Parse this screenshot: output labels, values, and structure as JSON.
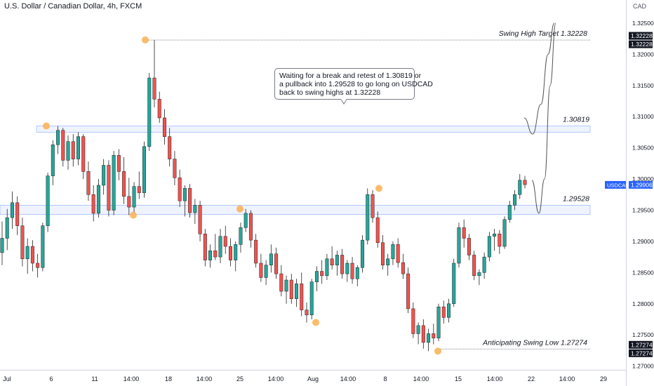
{
  "header": {
    "title": "U.S. Dollar / Canadian Dollar, 4h, FXCM"
  },
  "callout": {
    "lines": [
      "Waiting for a break and retest of 1.30819 or",
      "a pullback into 1.29528 to go long on USDCAD",
      "back to swing highs at 1.32228"
    ]
  },
  "chart_data": {
    "type": "candlestick",
    "symbol": "USDCAD",
    "currency": "CAD",
    "ylim": [
      1.2694,
      1.3287
    ],
    "y_ticks": [
      "1.27000",
      "1.27500",
      "1.28000",
      "1.28500",
      "1.29000",
      "1.29500",
      "1.30000",
      "1.30500",
      "1.31000",
      "1.31500",
      "1.32000",
      "1.32500"
    ],
    "x_ticks": [
      "Jul",
      "6",
      "11",
      "14:00",
      "18",
      "14:00",
      "25",
      "14:00",
      "Aug",
      "14:00",
      "8",
      "14:00",
      "15",
      "14:00",
      "22",
      "14:00",
      "29"
    ],
    "last_price": "1.29906",
    "last_price_label": "USDCAD",
    "up_color": "#26a69a",
    "down_color": "#ef5350",
    "zone_color": "#2962ff",
    "swing_marker_color": "#f9b55b",
    "levels": [
      {
        "value": 1.32228,
        "label": "Swing High Target 1.32228",
        "scale_label": "1.32228"
      },
      {
        "value": 1.30819,
        "label": "1.30819",
        "zone": [
          1.3075,
          1.3085
        ]
      },
      {
        "value": 1.29528,
        "label": "1.29528",
        "zone": [
          1.2943,
          1.2958
        ]
      },
      {
        "value": 1.27274,
        "label": "Anticipating Swing Low 1.27274",
        "scale_label": "1.27274"
      }
    ],
    "swing_points": [
      {
        "date": "Jul 5",
        "price": 1.3085
      },
      {
        "date": "Jul 13",
        "price": 1.2942
      },
      {
        "date": "Jul 14",
        "price": 1.3223
      },
      {
        "date": "Jul 25",
        "price": 1.2952
      },
      {
        "date": "Jul 30",
        "price": 1.277
      },
      {
        "date": "Aug 7",
        "price": 1.2985
      },
      {
        "date": "Aug 11",
        "price": 1.2724
      }
    ],
    "projection": [
      {
        "path": "1.3098 → 1.3072 → 1.3120 → 1.3200 → 1.3250",
        "price_points": [
          1.3098,
          1.3072,
          1.312,
          1.32,
          1.325
        ]
      },
      {
        "path": "1.2998 → 1.2945 → 1.3000 → 1.3150 → 1.3250",
        "price_points": [
          1.2998,
          1.2945,
          1.3,
          1.315,
          1.325
        ]
      }
    ],
    "candles": [
      [
        1.2882,
        1.2932,
        1.2862,
        1.2905
      ],
      [
        1.2905,
        1.2952,
        1.2886,
        1.2938
      ],
      [
        1.2938,
        1.298,
        1.292,
        1.2962
      ],
      [
        1.2962,
        1.2972,
        1.291,
        1.2925
      ],
      [
        1.2925,
        1.2938,
        1.286,
        1.2872
      ],
      [
        1.2872,
        1.2905,
        1.2848,
        1.2892
      ],
      [
        1.2892,
        1.2902,
        1.2852,
        1.2865
      ],
      [
        1.2865,
        1.288,
        1.2842,
        1.2858
      ],
      [
        1.2858,
        1.293,
        1.2852,
        1.2925
      ],
      [
        1.2925,
        1.301,
        1.2915,
        1.3005
      ],
      [
        1.3005,
        1.3062,
        1.299,
        1.3055
      ],
      [
        1.3055,
        1.3085,
        1.304,
        1.3078
      ],
      [
        1.3078,
        1.3082,
        1.302,
        1.303
      ],
      [
        1.303,
        1.307,
        1.3015,
        1.306
      ],
      [
        1.306,
        1.3072,
        1.302,
        1.3032
      ],
      [
        1.3032,
        1.3075,
        1.3022,
        1.3068
      ],
      [
        1.3068,
        1.3072,
        1.3,
        1.3012
      ],
      [
        1.3012,
        1.3028,
        1.2965,
        1.2975
      ],
      [
        1.2975,
        1.299,
        1.2932,
        1.2945
      ],
      [
        1.2945,
        1.3,
        1.2938,
        1.299
      ],
      [
        1.299,
        1.3032,
        1.2975,
        1.3022
      ],
      [
        1.3022,
        1.303,
        1.294,
        1.295
      ],
      [
        1.295,
        1.3045,
        1.2942,
        1.3038
      ],
      [
        1.3038,
        1.3048,
        1.2998,
        1.3012
      ],
      [
        1.3012,
        1.3035,
        1.296,
        1.2972
      ],
      [
        1.2972,
        1.3002,
        1.2942,
        1.2955
      ],
      [
        1.2955,
        1.2995,
        1.2945,
        1.2988
      ],
      [
        1.2988,
        1.3012,
        1.2968,
        1.2978
      ],
      [
        1.2978,
        1.306,
        1.297,
        1.3052
      ],
      [
        1.3052,
        1.317,
        1.3045,
        1.3162
      ],
      [
        1.3162,
        1.3223,
        1.3115,
        1.3128
      ],
      [
        1.3128,
        1.314,
        1.309,
        1.3098
      ],
      [
        1.3098,
        1.3112,
        1.3055,
        1.3068
      ],
      [
        1.3068,
        1.3082,
        1.302,
        1.3032
      ],
      [
        1.3032,
        1.3045,
        1.299,
        1.3002
      ],
      [
        1.3002,
        1.3015,
        1.2955,
        1.2965
      ],
      [
        1.2965,
        1.299,
        1.294,
        1.2985
      ],
      [
        1.2985,
        1.2992,
        1.2938,
        1.2946
      ],
      [
        1.2946,
        1.2968,
        1.2928,
        1.2958
      ],
      [
        1.2958,
        1.2965,
        1.29,
        1.2912
      ],
      [
        1.2912,
        1.292,
        1.286,
        1.287
      ],
      [
        1.287,
        1.2895,
        1.2858,
        1.2885
      ],
      [
        1.2885,
        1.2912,
        1.287,
        1.2875
      ],
      [
        1.2875,
        1.292,
        1.2865,
        1.2908
      ],
      [
        1.2908,
        1.2925,
        1.288,
        1.2892
      ],
      [
        1.2892,
        1.2905,
        1.286,
        1.287
      ],
      [
        1.287,
        1.29,
        1.2852,
        1.2895
      ],
      [
        1.2895,
        1.293,
        1.2882,
        1.2922
      ],
      [
        1.2922,
        1.2952,
        1.2915,
        1.2945
      ],
      [
        1.2945,
        1.295,
        1.289,
        1.2902
      ],
      [
        1.2902,
        1.2912,
        1.2858,
        1.2865
      ],
      [
        1.2865,
        1.288,
        1.2835,
        1.2842
      ],
      [
        1.2842,
        1.287,
        1.283,
        1.2862
      ],
      [
        1.2862,
        1.2895,
        1.285,
        1.288
      ],
      [
        1.288,
        1.289,
        1.284,
        1.2848
      ],
      [
        1.2848,
        1.2862,
        1.2812,
        1.282
      ],
      [
        1.282,
        1.2845,
        1.28,
        1.2838
      ],
      [
        1.2838,
        1.2848,
        1.28,
        1.2808
      ],
      [
        1.2808,
        1.284,
        1.2795,
        1.2832
      ],
      [
        1.2832,
        1.285,
        1.278,
        1.279
      ],
      [
        1.279,
        1.2802,
        1.277,
        1.2782
      ],
      [
        1.2782,
        1.284,
        1.2775,
        1.2835
      ],
      [
        1.2835,
        1.286,
        1.282,
        1.2852
      ],
      [
        1.2852,
        1.287,
        1.2832,
        1.2845
      ],
      [
        1.2845,
        1.288,
        1.2838,
        1.2872
      ],
      [
        1.2872,
        1.2892,
        1.2855,
        1.2862
      ],
      [
        1.2862,
        1.2885,
        1.2845,
        1.2878
      ],
      [
        1.2878,
        1.2888,
        1.284,
        1.2848
      ],
      [
        1.2848,
        1.287,
        1.2835,
        1.2865
      ],
      [
        1.2865,
        1.2875,
        1.2832,
        1.284
      ],
      [
        1.284,
        1.2862,
        1.2828,
        1.2858
      ],
      [
        1.2858,
        1.291,
        1.285,
        1.2902
      ],
      [
        1.2902,
        1.2985,
        1.2895,
        1.2975
      ],
      [
        1.2975,
        1.2982,
        1.293,
        1.2938
      ],
      [
        1.2938,
        1.2948,
        1.289,
        1.2898
      ],
      [
        1.2898,
        1.291,
        1.2855,
        1.2862
      ],
      [
        1.2862,
        1.288,
        1.2845,
        1.2872
      ],
      [
        1.2872,
        1.29,
        1.2862,
        1.2895
      ],
      [
        1.2895,
        1.2905,
        1.2858,
        1.2866
      ],
      [
        1.2866,
        1.288,
        1.284,
        1.2848
      ],
      [
        1.2848,
        1.2858,
        1.2785,
        1.2792
      ],
      [
        1.2792,
        1.2802,
        1.2745,
        1.2752
      ],
      [
        1.2752,
        1.277,
        1.2735,
        1.2765
      ],
      [
        1.2765,
        1.2775,
        1.2728,
        1.2738
      ],
      [
        1.2738,
        1.276,
        1.2724,
        1.2752
      ],
      [
        1.2752,
        1.2768,
        1.2735,
        1.2745
      ],
      [
        1.2745,
        1.28,
        1.274,
        1.2795
      ],
      [
        1.2795,
        1.2805,
        1.2768,
        1.2778
      ],
      [
        1.2778,
        1.2808,
        1.277,
        1.28
      ],
      [
        1.28,
        1.2872,
        1.2795,
        1.2865
      ],
      [
        1.2865,
        1.293,
        1.2858,
        1.2922
      ],
      [
        1.2922,
        1.2935,
        1.289,
        1.2905
      ],
      [
        1.2905,
        1.2912,
        1.287,
        1.2878
      ],
      [
        1.2878,
        1.2885,
        1.2838,
        1.2845
      ],
      [
        1.2845,
        1.2855,
        1.283,
        1.285
      ],
      [
        1.285,
        1.2882,
        1.284,
        1.2875
      ],
      [
        1.2875,
        1.2915,
        1.2868,
        1.2908
      ],
      [
        1.2908,
        1.292,
        1.2885,
        1.2912
      ],
      [
        1.2912,
        1.2918,
        1.288,
        1.2892
      ],
      [
        1.2892,
        1.294,
        1.2888,
        1.2935
      ],
      [
        1.2935,
        1.2965,
        1.293,
        1.2958
      ],
      [
        1.2958,
        1.2982,
        1.295,
        1.2975
      ],
      [
        1.2975,
        1.3008,
        1.2968,
        1.2998
      ],
      [
        1.2998,
        1.3005,
        1.2985,
        1.2991
      ]
    ]
  }
}
